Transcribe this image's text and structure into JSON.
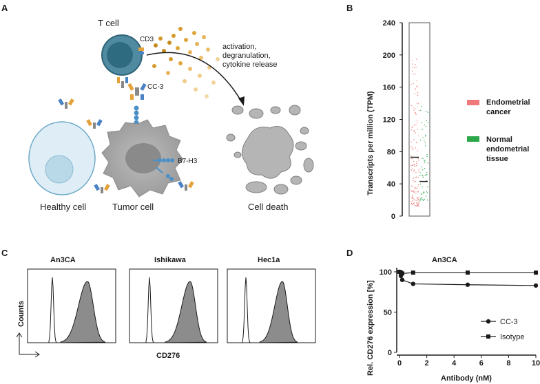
{
  "panels": {
    "a": "A",
    "b": "B",
    "c": "C",
    "d": "D"
  },
  "panel_a": {
    "t_cell": "T cell",
    "cd3": "CD3",
    "cc3": "CC-3",
    "b7h3": "B7-H3",
    "release": [
      "activation,",
      "degranulation,",
      "cytokine release"
    ],
    "healthy_cell": "Healthy cell",
    "tumor_cell": "Tumor cell",
    "cell_death": "Cell death"
  },
  "panel_b": {
    "ylabel": "Transcripts per million (TPM)",
    "legend": {
      "cancer": [
        "Endometrial",
        "cancer"
      ],
      "normal": [
        "Normal",
        "endometrial",
        "tissue"
      ]
    },
    "colors": {
      "cancer": "#f07a7a",
      "normal": "#2ca84a"
    }
  },
  "panel_c": {
    "titles": [
      "An3CA",
      "Ishikawa",
      "Hec1a"
    ],
    "ylabel": "Counts",
    "xlabel": "CD276"
  },
  "chart_data": [
    {
      "type": "scatter",
      "title": "",
      "xlabel": "",
      "ylabel": "Transcripts per million (TPM)",
      "yticks": [
        0,
        40,
        80,
        120,
        160,
        200,
        240
      ],
      "ylim": [
        0,
        240
      ],
      "series": [
        {
          "name": "Endometrial cancer",
          "median": 73,
          "range": [
            13,
            198
          ]
        },
        {
          "name": "Normal endometrial tissue",
          "median": 43,
          "range": [
            20,
            140
          ]
        }
      ]
    },
    {
      "type": "line",
      "title": "An3CA",
      "xlabel": "Antibody (nM)",
      "ylabel": "Rel. CD276 expression [%]",
      "xticks": [
        0,
        2,
        4,
        6,
        8,
        10
      ],
      "yticks": [
        0,
        50,
        100
      ],
      "xlim": [
        0,
        10
      ],
      "ylim": [
        0,
        100
      ],
      "series": [
        {
          "name": "CC-3",
          "x": [
            0,
            0.1,
            0.2,
            1,
            5,
            10
          ],
          "y": [
            100,
            95,
            90,
            85,
            84,
            83
          ]
        },
        {
          "name": "Isotype",
          "x": [
            0,
            0.1,
            0.2,
            1,
            5,
            10
          ],
          "y": [
            100,
            99,
            98,
            99,
            99,
            99
          ]
        }
      ]
    }
  ]
}
